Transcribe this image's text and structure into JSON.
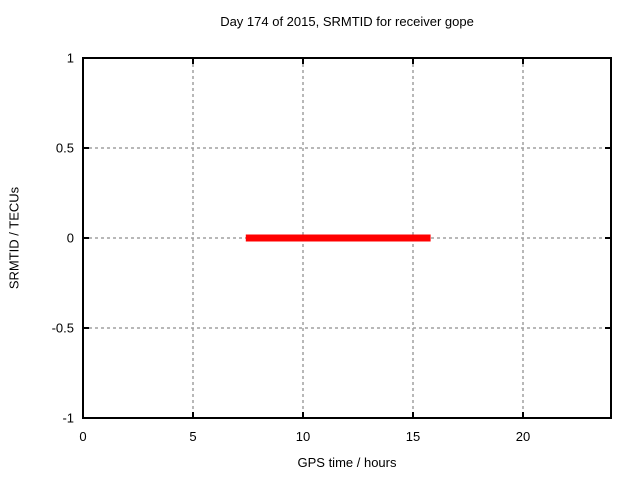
{
  "page": {
    "background": "#ffffff"
  },
  "chart_data": {
    "type": "line",
    "title": "Day 174 of 2015, SRMTID for receiver gope",
    "xlabel": "GPS time / hours",
    "ylabel": "SRMTID / TECUs",
    "xlim": [
      0,
      24
    ],
    "ylim": [
      -1,
      1
    ],
    "xticks": {
      "values": [
        0,
        5,
        10,
        15,
        20
      ],
      "labels": [
        "0",
        "5",
        "10",
        "15",
        "20"
      ]
    },
    "yticks": {
      "values": [
        -1,
        -0.5,
        0,
        0.5,
        1
      ],
      "labels": [
        "-1",
        "-0.5",
        "0",
        "0.5",
        "1"
      ]
    },
    "grid": true,
    "grid_color": "#a0a0a0",
    "frame_color": "#000000",
    "legend": "none",
    "series": [
      {
        "name": "SRMTID",
        "color": "#ff0000",
        "linewidth": 7,
        "x": [
          7.4,
          15.8
        ],
        "y": [
          0,
          0
        ]
      }
    ]
  }
}
